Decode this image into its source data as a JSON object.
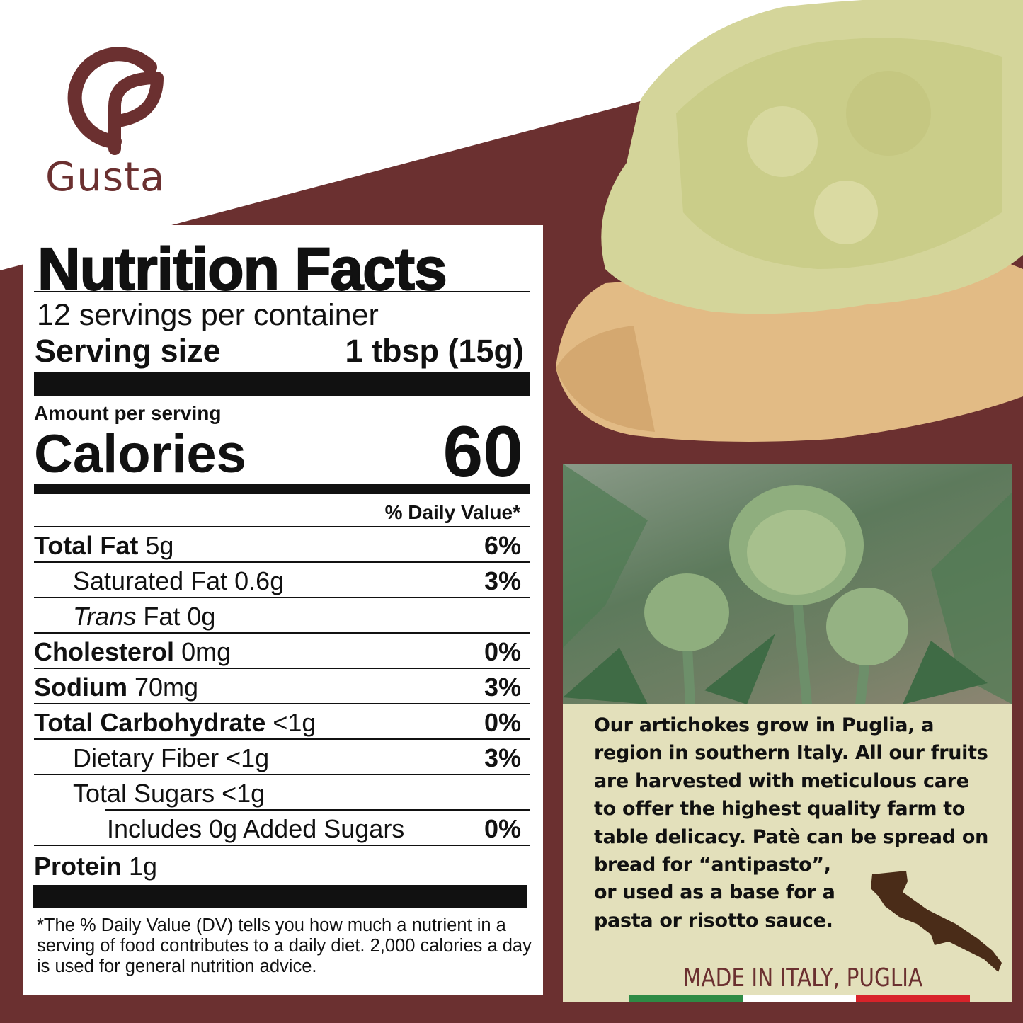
{
  "brand": {
    "name": "Gusta",
    "color": "#6b3030"
  },
  "nutrition": {
    "title": "Nutrition Facts",
    "servings": "12 servings per container",
    "serving_size_label": "Serving size",
    "serving_size_value": "1 tbsp (15g)",
    "amount_per_serving": "Amount per serving",
    "calories_label": "Calories",
    "calories_value": "60",
    "dv_header": "% Daily Value*",
    "rows": [
      {
        "label": "Total Fat",
        "amount": "5g",
        "dv": "6%"
      },
      {
        "label": "Saturated Fat",
        "amount": "0.6g",
        "dv": "3%"
      },
      {
        "label": "Trans",
        "label2": "Fat 0g",
        "dv": ""
      },
      {
        "label": "Cholesterol",
        "amount": "0mg",
        "dv": "0%"
      },
      {
        "label": "Sodium",
        "amount": "70mg",
        "dv": "3%"
      },
      {
        "label": "Total Carbohydrate",
        "amount": "<1g",
        "dv": "0%"
      },
      {
        "label": "Dietary Fiber",
        "amount": "<1g",
        "dv": "3%"
      },
      {
        "label": "Total Sugars",
        "amount": "<1g",
        "dv": ""
      },
      {
        "label": "Includes 0g Added Sugars",
        "amount": "",
        "dv": "0%"
      },
      {
        "label": "Protein",
        "amount": "1g",
        "dv": ""
      }
    ],
    "footnote": "*The % Daily Value (DV) tells you how much a nutrient in a serving of food contributes to a daily diet. 2,000 calories a day is used for general nutrition advice."
  },
  "info": {
    "lines": [
      "Our artichokes grow in Puglia, a",
      "region in southern Italy. All our fruits",
      "are harvested with meticulous care",
      "to offer the highest quality farm to",
      "table delicacy. Patè can be spread on",
      "bread for “antipasto”,",
      "or used as a base for a",
      "pasta or risotto sauce."
    ],
    "made_in": "MADE IN ITALY, PUGLIA",
    "flag_colors": [
      "#2e8b45",
      "#ffffff",
      "#d8232a"
    ]
  }
}
